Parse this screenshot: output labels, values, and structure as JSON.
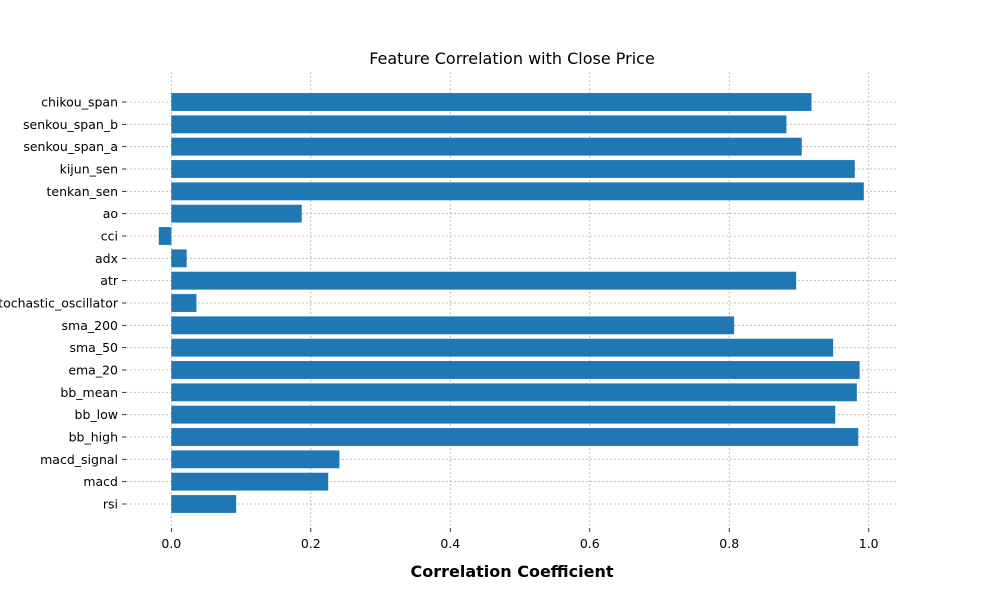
{
  "chart_data": {
    "type": "bar",
    "orientation": "horizontal",
    "title": "Feature Correlation with Close Price",
    "xlabel": "Correlation Coefficient",
    "ylabel": "",
    "categories": [
      "rsi",
      "macd",
      "macd_signal",
      "bb_high",
      "bb_low",
      "bb_mean",
      "ema_20",
      "sma_50",
      "sma_200",
      "stochastic_oscillator",
      "atr",
      "adx",
      "cci",
      "ao",
      "tenkan_sen",
      "kijun_sen",
      "senkou_span_a",
      "senkou_span_b",
      "chikou_span"
    ],
    "values": [
      0.093,
      0.225,
      0.241,
      0.985,
      0.952,
      0.983,
      0.987,
      0.949,
      0.807,
      0.036,
      0.896,
      0.022,
      -0.018,
      0.187,
      0.993,
      0.98,
      0.904,
      0.882,
      0.918
    ],
    "xlim": [
      -0.065,
      1.042
    ],
    "xticks": [
      0.0,
      0.2,
      0.4,
      0.6,
      0.8,
      1.0
    ],
    "xtick_labels": [
      "0.0",
      "0.2",
      "0.4",
      "0.6",
      "0.8",
      "1.0"
    ],
    "grid": true,
    "bar_color": "#1f77b4"
  }
}
